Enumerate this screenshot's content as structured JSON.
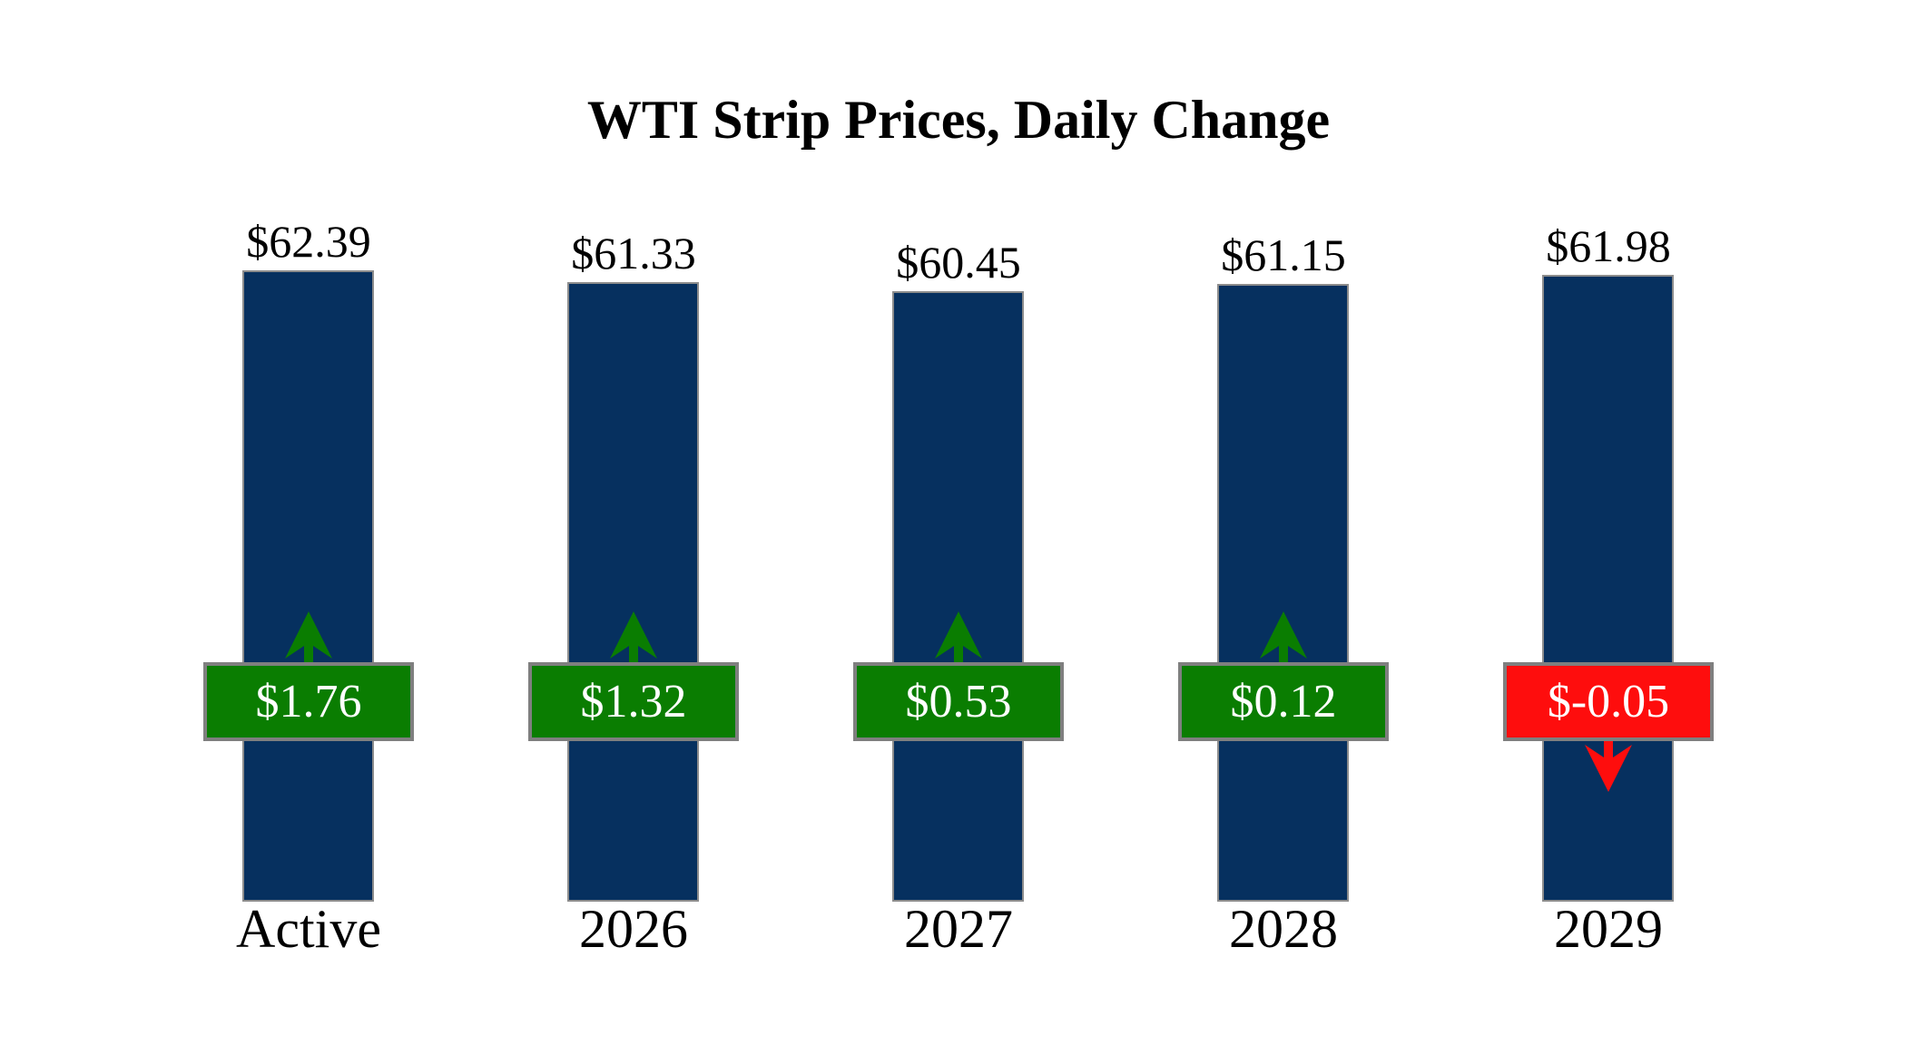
{
  "title": "WTI Strip Prices, Daily Change",
  "colors": {
    "background": "#ffffff",
    "bar_fill": "#06305f",
    "bar_border": "#8c8c8c",
    "positive": "#0a7d01",
    "negative": "#fe0d0d",
    "box_border": "#7f7f7f",
    "box_text": "#ffffff",
    "label_text": "#000000"
  },
  "chart_data": {
    "type": "bar",
    "title": "WTI Strip Prices, Daily Change",
    "xlabel": "",
    "ylabel": "",
    "legend": "none",
    "grid": false,
    "axes_hidden": true,
    "categories": [
      "Active",
      "2026",
      "2027",
      "2028",
      "2029"
    ],
    "series": [
      {
        "name": "Strip Price ($/bbl)",
        "values": [
          62.39,
          61.33,
          60.45,
          61.15,
          61.98
        ]
      },
      {
        "name": "Daily Change ($)",
        "values": [
          1.76,
          1.32,
          0.53,
          0.12,
          -0.05
        ]
      }
    ],
    "columns": [
      {
        "category": "Active",
        "price": 62.39,
        "price_label": "$62.39",
        "change": 1.76,
        "change_label": "$1.76",
        "direction": "up"
      },
      {
        "category": "2026",
        "price": 61.33,
        "price_label": "$61.33",
        "change": 1.32,
        "change_label": "$1.32",
        "direction": "up"
      },
      {
        "category": "2027",
        "price": 60.45,
        "price_label": "$60.45",
        "change": 0.53,
        "change_label": "$0.53",
        "direction": "up"
      },
      {
        "category": "2028",
        "price": 61.15,
        "price_label": "$61.15",
        "change": 0.12,
        "change_label": "$0.12",
        "direction": "up"
      },
      {
        "category": "2029",
        "price": 61.98,
        "price_label": "$61.98",
        "change": -0.05,
        "change_label": "$-0.05",
        "direction": "down"
      }
    ]
  }
}
